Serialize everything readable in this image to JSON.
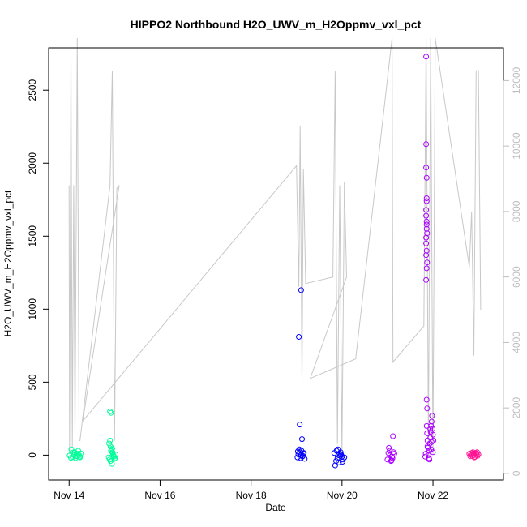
{
  "chart_data": {
    "type": "scatter",
    "title": "HIPPO2 Northbound H2O_UWV_m_H2Oppmv_vxl_pct",
    "xlabel": "Date",
    "ylabel": "H2O_UWV_m_H2Oppmv_vxl_pct",
    "x_unit": "days (November)",
    "xlim": [
      13.55,
      23.55
    ],
    "ylim": [
      -170,
      2790
    ],
    "x_ticks": [
      {
        "value": 14,
        "label": "Nov 14"
      },
      {
        "value": 16,
        "label": "Nov 16"
      },
      {
        "value": 18,
        "label": "Nov 18"
      },
      {
        "value": 20,
        "label": "Nov 20"
      },
      {
        "value": 22,
        "label": "Nov 22"
      }
    ],
    "y_ticks": [
      0,
      500,
      1000,
      1500,
      2000,
      2500
    ],
    "y2_ticks": [
      0,
      2000,
      4000,
      6000,
      8000,
      10000,
      12000
    ],
    "y2lim": [
      -200,
      13000
    ],
    "grid": false,
    "series": [
      {
        "color": "#00ff99",
        "points": [
          [
            14.05,
            40
          ],
          [
            14.08,
            -12
          ],
          [
            14.1,
            5
          ],
          [
            14.12,
            20
          ],
          [
            14.14,
            -20
          ],
          [
            14.16,
            8
          ],
          [
            14.18,
            -5
          ],
          [
            14.2,
            30
          ],
          [
            14.22,
            0
          ],
          [
            14.24,
            -15
          ],
          [
            14.26,
            12
          ],
          [
            14.08,
            18
          ],
          [
            14.15,
            -8
          ],
          [
            14.19,
            10
          ],
          [
            14.01,
            -3
          ],
          [
            14.04,
            -18
          ],
          [
            14.11,
            2
          ],
          [
            14.23,
            -10
          ],
          [
            14.9,
            300
          ],
          [
            14.92,
            290
          ],
          [
            14.9,
            100
          ],
          [
            14.88,
            80
          ],
          [
            14.91,
            60
          ],
          [
            14.93,
            40
          ],
          [
            14.95,
            20
          ],
          [
            14.97,
            0
          ],
          [
            14.99,
            -10
          ],
          [
            15.01,
            -20
          ],
          [
            14.94,
            -60
          ],
          [
            14.89,
            -30
          ],
          [
            14.96,
            15
          ],
          [
            14.98,
            -5
          ],
          [
            15.02,
            5
          ],
          [
            14.92,
            30
          ],
          [
            14.87,
            -15
          ],
          [
            15.0,
            -25
          ],
          [
            14.95,
            45
          ],
          [
            14.91,
            -40
          ]
        ]
      },
      {
        "color": "#0000ff",
        "points": [
          [
            19.05,
            810
          ],
          [
            19.1,
            1130
          ],
          [
            19.07,
            210
          ],
          [
            19.12,
            110
          ],
          [
            19.06,
            40
          ],
          [
            19.08,
            20
          ],
          [
            19.1,
            0
          ],
          [
            19.13,
            -10
          ],
          [
            19.15,
            10
          ],
          [
            19.02,
            -15
          ],
          [
            19.04,
            5
          ],
          [
            19.09,
            -20
          ],
          [
            19.11,
            30
          ],
          [
            19.14,
            -5
          ],
          [
            19.16,
            15
          ],
          [
            19.03,
            25
          ],
          [
            19.18,
            -25
          ],
          [
            19.85,
            -70
          ],
          [
            19.87,
            -40
          ],
          [
            19.9,
            -20
          ],
          [
            19.92,
            0
          ],
          [
            19.95,
            10
          ],
          [
            19.97,
            20
          ],
          [
            20.0,
            -10
          ],
          [
            20.02,
            -30
          ],
          [
            19.88,
            30
          ],
          [
            19.93,
            -50
          ],
          [
            19.98,
            5
          ],
          [
            20.05,
            -15
          ],
          [
            19.83,
            15
          ],
          [
            19.96,
            -5
          ],
          [
            20.01,
            -45
          ],
          [
            19.91,
            40
          ]
        ]
      },
      {
        "color": "#aa00ff",
        "points": [
          [
            21.0,
            -30
          ],
          [
            21.05,
            30
          ],
          [
            21.1,
            -10
          ],
          [
            21.12,
            130
          ],
          [
            21.15,
            10
          ],
          [
            21.08,
            -40
          ],
          [
            21.03,
            50
          ],
          [
            21.11,
            -20
          ],
          [
            21.06,
            0
          ],
          [
            21.13,
            20
          ],
          [
            21.02,
            15
          ],
          [
            21.09,
            -35
          ],
          [
            21.85,
            2730
          ],
          [
            21.85,
            2130
          ],
          [
            21.85,
            1970
          ],
          [
            21.86,
            1900
          ],
          [
            21.86,
            1760
          ],
          [
            21.86,
            1740
          ],
          [
            21.85,
            1680
          ],
          [
            21.85,
            1640
          ],
          [
            21.86,
            1600
          ],
          [
            21.86,
            1580
          ],
          [
            21.86,
            1550
          ],
          [
            21.87,
            1520
          ],
          [
            21.85,
            1490
          ],
          [
            21.85,
            1450
          ],
          [
            21.86,
            1400
          ],
          [
            21.85,
            1370
          ],
          [
            21.87,
            1320
          ],
          [
            21.86,
            1280
          ],
          [
            21.85,
            1200
          ],
          [
            21.86,
            380
          ],
          [
            21.87,
            320
          ],
          [
            21.86,
            200
          ],
          [
            21.87,
            150
          ],
          [
            21.88,
            100
          ],
          [
            21.89,
            50
          ],
          [
            21.9,
            0
          ],
          [
            21.91,
            -20
          ],
          [
            21.92,
            30
          ],
          [
            21.93,
            80
          ],
          [
            21.94,
            120
          ],
          [
            21.95,
            160
          ],
          [
            21.96,
            200
          ],
          [
            21.97,
            230
          ],
          [
            21.98,
            270
          ],
          [
            21.99,
            180
          ],
          [
            22.0,
            140
          ],
          [
            22.01,
            100
          ],
          [
            21.84,
            10
          ],
          [
            21.83,
            -10
          ],
          [
            21.88,
            60
          ],
          [
            21.92,
            -30
          ],
          [
            21.96,
            40
          ],
          [
            22.0,
            20
          ],
          [
            21.94,
            180
          ],
          [
            21.97,
            90
          ]
        ]
      },
      {
        "color": "#ff1493",
        "points": [
          [
            22.8,
            10
          ],
          [
            22.83,
            5
          ],
          [
            22.86,
            -5
          ],
          [
            22.88,
            20
          ],
          [
            22.9,
            0
          ],
          [
            22.92,
            -10
          ],
          [
            22.94,
            15
          ],
          [
            22.96,
            10
          ],
          [
            22.98,
            -5
          ],
          [
            23.0,
            5
          ],
          [
            22.85,
            15
          ],
          [
            22.91,
            -15
          ],
          [
            22.97,
            20
          ],
          [
            22.82,
            -8
          ],
          [
            22.89,
            12
          ]
        ]
      }
    ],
    "secondary_line": {
      "color": "#c8c8c8",
      "y_axis": "right",
      "points": [
        [
          14.0,
          8800
        ],
        [
          14.01,
          600
        ],
        [
          14.04,
          12800
        ],
        [
          14.07,
          800
        ],
        [
          14.1,
          8800
        ],
        [
          14.13,
          1200
        ],
        [
          14.18,
          13300
        ],
        [
          14.22,
          1000
        ],
        [
          14.24,
          1000
        ],
        [
          14.9,
          8800
        ],
        [
          14.95,
          12300
        ],
        [
          15.0,
          1000
        ],
        [
          15.05,
          8700
        ],
        [
          15.1,
          8800
        ],
        [
          14.3,
          1600
        ],
        [
          19.0,
          9400
        ],
        [
          19.05,
          5700
        ],
        [
          19.08,
          10600
        ],
        [
          19.12,
          2800
        ],
        [
          19.15,
          9300
        ],
        [
          19.2,
          5800
        ],
        [
          19.8,
          6000
        ],
        [
          19.85,
          12300
        ],
        [
          19.9,
          900
        ],
        [
          19.95,
          8800
        ],
        [
          20.0,
          600
        ],
        [
          20.05,
          8900
        ],
        [
          20.1,
          6000
        ],
        [
          19.3,
          2900
        ],
        [
          20.3,
          3500
        ],
        [
          21.1,
          13300
        ],
        [
          21.12,
          3400
        ],
        [
          21.8,
          4500
        ],
        [
          21.85,
          13300
        ],
        [
          21.9,
          1000
        ],
        [
          21.95,
          13300
        ],
        [
          22.0,
          600
        ],
        [
          22.05,
          13300
        ],
        [
          22.8,
          6300
        ],
        [
          22.85,
          8000
        ],
        [
          22.9,
          3600
        ],
        [
          22.95,
          12300
        ],
        [
          23.0,
          12300
        ],
        [
          23.05,
          5000
        ]
      ]
    }
  }
}
